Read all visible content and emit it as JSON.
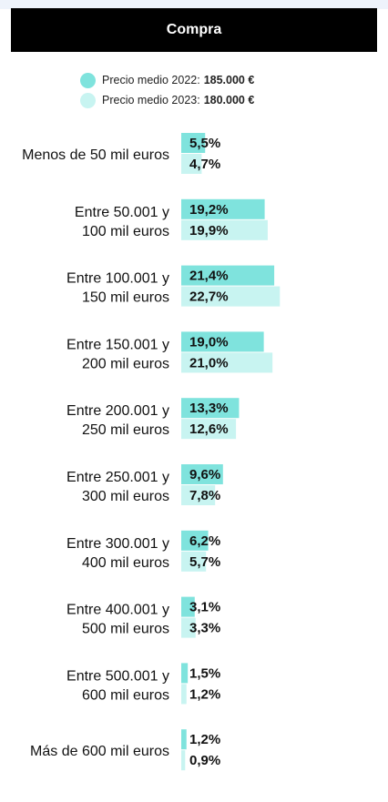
{
  "header": {
    "title": "Compra"
  },
  "legend": [
    {
      "label": "Precio medio 2022:",
      "value": "185.000 €",
      "color": "#7fe3dd"
    },
    {
      "label": "Precio medio 2023:",
      "value": "180.000 €",
      "color": "#c8f4f1"
    }
  ],
  "chart_data": {
    "type": "bar",
    "orientation": "horizontal",
    "categories": [
      [
        "Menos de 50 mil euros"
      ],
      [
        "Entre 50.001 y",
        "100 mil euros"
      ],
      [
        "Entre 100.001 y",
        "150 mil euros"
      ],
      [
        "Entre 150.001 y",
        "200 mil euros"
      ],
      [
        "Entre 200.001 y",
        "250 mil euros"
      ],
      [
        "Entre 250.001 y",
        "300 mil euros"
      ],
      [
        "Entre 300.001 y",
        "400 mil euros"
      ],
      [
        "Entre 400.001 y",
        "500 mil euros"
      ],
      [
        "Entre 500.001 y",
        "600 mil euros"
      ],
      [
        "Más de 600 mil euros"
      ]
    ],
    "series": [
      {
        "name": "Precio medio 2022: 185.000 €",
        "color": "#7fe3dd",
        "values": [
          5.5,
          19.2,
          21.4,
          19.0,
          13.3,
          9.6,
          6.2,
          3.1,
          1.5,
          1.2
        ],
        "labels": [
          "5,5%",
          "19,2%",
          "21,4%",
          "19,0%",
          "13,3%",
          "9,6%",
          "6,2%",
          "3,1%",
          "1,5%",
          "1,2%"
        ]
      },
      {
        "name": "Precio medio 2023: 180.000 €",
        "color": "#c8f4f1",
        "values": [
          4.7,
          19.9,
          22.7,
          21.0,
          12.6,
          7.8,
          5.7,
          3.3,
          1.2,
          0.9
        ],
        "labels": [
          "4,7%",
          "19,9%",
          "22,7%",
          "21,0%",
          "12,6%",
          "7,8%",
          "5,7%",
          "3,3%",
          "1,2%",
          "0,9%"
        ]
      }
    ],
    "xlim": [
      0,
      25
    ],
    "legend_position": "top",
    "grid": false
  }
}
